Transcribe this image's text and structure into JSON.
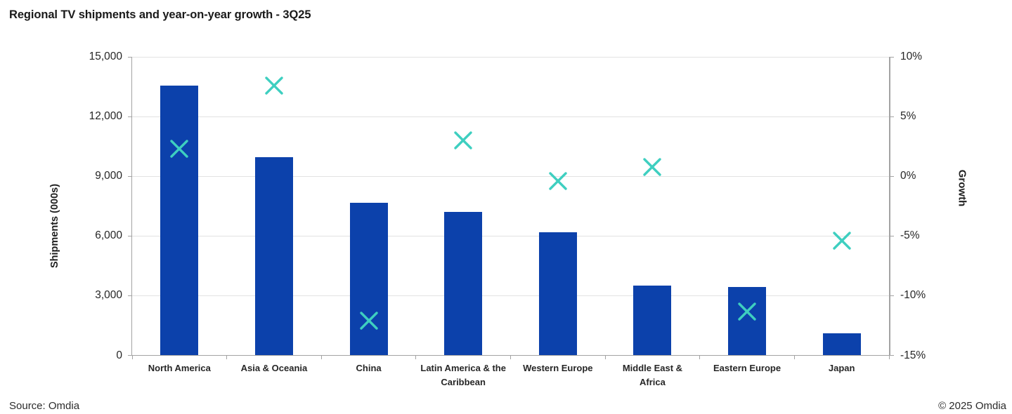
{
  "header": {
    "title": "Regional TV shipments and year-on-year growth - 3Q25"
  },
  "footer": {
    "source": "Source: Omdia",
    "copyright": "© 2025 Omdia"
  },
  "colors": {
    "bar": "#0c41ab",
    "marker": "#3ecfc0",
    "gridline": "#e2e2e2",
    "axis": "#a3a3a3",
    "title_text": "#1a1a1a",
    "label_text": "#262626"
  },
  "chart_data": {
    "type": "combo-bar-scatter",
    "title": "Regional TV shipments and year-on-year growth - 3Q25",
    "categories": [
      "North America",
      "Asia & Oceania",
      "China",
      "Latin America & the Caribbean",
      "Western Europe",
      "Middle East & Africa",
      "Eastern Europe",
      "Japan"
    ],
    "categories_display": [
      "North America",
      "Asia & Oceania",
      "China",
      "Latin America & the\nCaribbean",
      "Western Europe",
      "Middle East &\nAfrica",
      "Eastern Europe",
      "Japan"
    ],
    "series": [
      {
        "name": "Shipments (000s)",
        "type": "bar",
        "axis": "left",
        "values": [
          13550,
          9950,
          7650,
          7200,
          6200,
          3500,
          3450,
          1100
        ]
      },
      {
        "name": "Growth",
        "type": "scatter",
        "marker": "x",
        "axis": "right",
        "unit": "%",
        "values": [
          2.3,
          7.6,
          -12.1,
          3.0,
          -0.4,
          0.8,
          -11.3,
          -5.4
        ]
      }
    ],
    "left_axis": {
      "label": "Shipments (000s)",
      "min": 0,
      "max": 15000,
      "step": 3000,
      "tick_labels": [
        "0",
        "3,000",
        "6,000",
        "9,000",
        "12,000",
        "15,000"
      ]
    },
    "right_axis": {
      "label": "Growth",
      "min": -15,
      "max": 10,
      "step": 5,
      "tick_labels": [
        "-15%",
        "-10%",
        "-5%",
        "0%",
        "5%",
        "10%"
      ]
    },
    "grid": true,
    "legend": "none",
    "source": "Source: Omdia"
  }
}
